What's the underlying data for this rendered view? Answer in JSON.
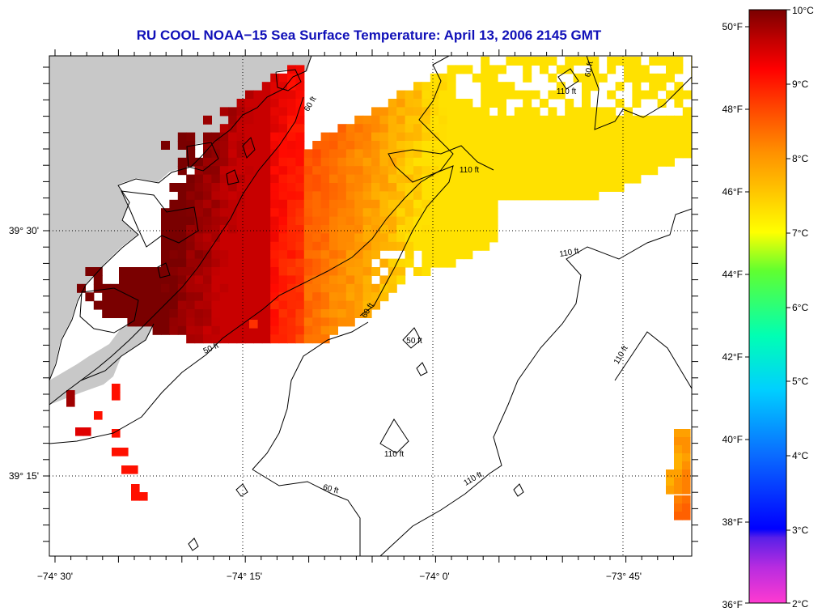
{
  "title": "RU COOL  NOAA−15  Sea Surface Temperature:  April 13, 2006 2145 GMT",
  "axes": {
    "x_ticks": [
      "−74° 30'",
      "−74° 15'",
      "−74° 0'",
      "−73° 45'"
    ],
    "y_ticks": [
      "39° 30'",
      "39° 15'"
    ]
  },
  "contour_labels": [
    "60 ft",
    "110 ft",
    "50 ft",
    "110 ft",
    "60 ft",
    "50 ft",
    "110 ft",
    "110 ft",
    "110 ft",
    "60 ft",
    "110 ft",
    "60 ft"
  ],
  "colorbar": {
    "fahrenheit": [
      "50°F",
      "48°F",
      "46°F",
      "44°F",
      "42°F",
      "40°F",
      "38°F",
      "36°F"
    ],
    "celsius": [
      "10°C",
      "9°C",
      "8°C",
      "7°C",
      "6°C",
      "5°C",
      "4°C",
      "3°C",
      "2°C"
    ],
    "colors": [
      "#ff3ad0",
      "#7a2be0",
      "#0000ff",
      "#0a6cff",
      "#00c8ff",
      "#00ffc8",
      "#40ff60",
      "#c0ff00",
      "#ffff00",
      "#ffb000",
      "#ff8000",
      "#ff3000",
      "#e00000",
      "#800000"
    ]
  },
  "legend_colors": {
    "land": "#c8c8c8",
    "title": "#1010b8"
  }
}
